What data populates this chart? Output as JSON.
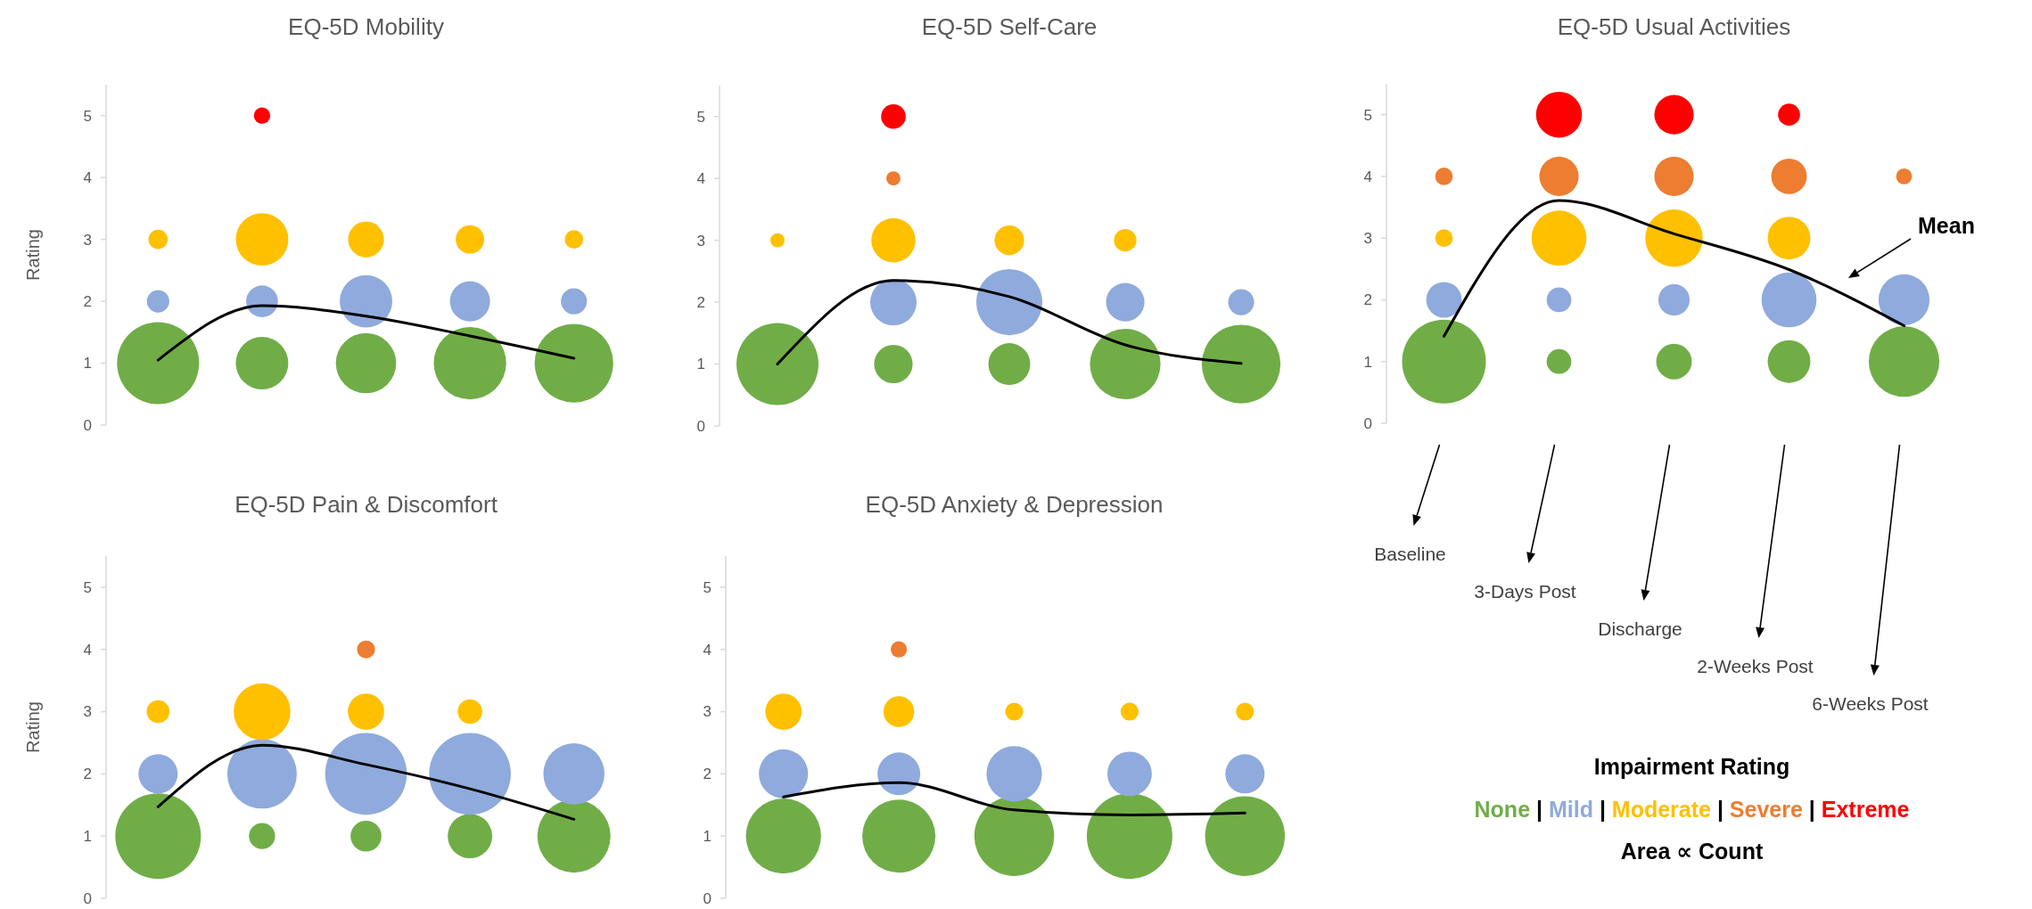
{
  "chart_data": [
    {
      "type": "bubble",
      "title": "EQ-5D Mobility",
      "ylabel": "Rating",
      "categories": [
        null,
        null,
        null,
        null,
        null
      ],
      "ylim": [
        0,
        5.5
      ],
      "yticks": [
        0,
        1,
        2,
        3,
        4,
        5
      ],
      "tick_labels": "y",
      "series": [
        {
          "color": "#70ad47",
          "values": [
            1,
            1,
            1,
            1,
            1
          ],
          "sizes": [
            1,
            0.41,
            0.54,
            0.78,
            0.92
          ]
        },
        {
          "color": "#8faadc",
          "values": [
            2,
            2,
            2,
            2,
            2
          ],
          "sizes": [
            0.075,
            0.15,
            0.41,
            0.24,
            0.1
          ]
        },
        {
          "color": "#ffc000",
          "values": [
            3,
            3,
            3,
            3,
            3
          ],
          "sizes": [
            0.055,
            0.41,
            0.19,
            0.12,
            0.05
          ]
        },
        {
          "color": "#ff0000",
          "values": [
            null,
            5,
            null,
            null,
            null
          ],
          "sizes": [
            null,
            0.04,
            null,
            null,
            null
          ]
        },
        {
          "type": "line",
          "color": "#000000",
          "values": [
            1.05,
            1.93,
            1.76,
            1.44,
            1.08
          ]
        }
      ]
    },
    {
      "type": "bubble",
      "title": "EQ-5D Self-Care",
      "categories": [
        null,
        null,
        null,
        null,
        null
      ],
      "ylim": [
        0,
        5.5
      ],
      "yticks": [
        0,
        1,
        2,
        3,
        4,
        5
      ],
      "tick_labels": "y",
      "series": [
        {
          "color": "#70ad47",
          "values": [
            1,
            1,
            1,
            1,
            1
          ],
          "sizes": [
            1,
            0.22,
            0.26,
            0.74,
            0.92
          ]
        },
        {
          "color": "#8faadc",
          "values": [
            null,
            2,
            2,
            2,
            2
          ],
          "sizes": [
            null,
            0.32,
            0.65,
            0.22,
            0.1
          ]
        },
        {
          "color": "#ffc000",
          "values": [
            3,
            3,
            3,
            3,
            null
          ],
          "sizes": [
            0.03,
            0.29,
            0.13,
            0.075,
            null
          ]
        },
        {
          "color": "#ed7d31",
          "values": [
            null,
            4,
            null,
            null,
            null
          ],
          "sizes": [
            null,
            0.03,
            null,
            null,
            null
          ]
        },
        {
          "color": "#ff0000",
          "values": [
            null,
            5,
            null,
            null,
            null
          ],
          "sizes": [
            null,
            0.09,
            null,
            null,
            null
          ]
        },
        {
          "type": "line",
          "color": "#000000",
          "values": [
            1.0,
            2.35,
            2.09,
            1.31,
            1.01
          ]
        }
      ]
    },
    {
      "type": "bubble",
      "title": "EQ-5D Usual Activities",
      "categories": [
        null,
        null,
        null,
        null,
        null
      ],
      "ylim": [
        0,
        5.5
      ],
      "yticks": [
        0,
        1,
        2,
        3,
        4,
        5
      ],
      "tick_labels": "y",
      "legend": "bottom",
      "legend_title": "Impairment Rating",
      "annotations": [
        "Baseline",
        "3-Days Post",
        "Discharge",
        "2-Weeks Post",
        "6-Weeks Post",
        "|",
        "|",
        "|",
        "|",
        "Area ∝ Count"
      ],
      "series": [
        {
          "name": "None",
          "color": "#70ad47",
          "values": [
            1,
            1,
            1,
            1,
            1
          ],
          "sizes": [
            1,
            0.087,
            0.18,
            0.26,
            0.71
          ]
        },
        {
          "name": "Mild",
          "color": "#8faadc",
          "values": [
            2,
            2,
            2,
            2,
            2
          ],
          "sizes": [
            0.18,
            0.087,
            0.14,
            0.43,
            0.37
          ]
        },
        {
          "name": "Moderate",
          "color": "#ffc000",
          "values": [
            3,
            3,
            3,
            3,
            null
          ],
          "sizes": [
            0.044,
            0.43,
            0.47,
            0.26,
            null
          ]
        },
        {
          "name": "Severe",
          "color": "#ed7d31",
          "values": [
            4,
            4,
            4,
            4,
            4
          ],
          "sizes": [
            0.044,
            0.22,
            0.22,
            0.18,
            0.036
          ]
        },
        {
          "name": "Extreme",
          "color": "#ff0000",
          "values": [
            null,
            5,
            5,
            5,
            null
          ],
          "sizes": [
            null,
            0.3,
            0.22,
            0.069,
            null
          ]
        },
        {
          "type": "line",
          "name": "Mean",
          "color": "#000000",
          "values": [
            1.41,
            3.61,
            3.07,
            2.49,
            1.58
          ]
        }
      ]
    },
    {
      "type": "bubble",
      "title": "EQ-5D Pain & Discomfort",
      "ylabel": "Rating",
      "categories": [
        null,
        null,
        null,
        null,
        null
      ],
      "ylim": [
        0,
        5.5
      ],
      "yticks": [
        0,
        1,
        2,
        3,
        4,
        5
      ],
      "tick_labels": "y",
      "series": [
        {
          "color": "#70ad47",
          "values": [
            1,
            1,
            1,
            1,
            1
          ],
          "sizes": [
            1,
            0.093,
            0.13,
            0.27,
            0.73
          ]
        },
        {
          "color": "#8faadc",
          "values": [
            2,
            2,
            2,
            2,
            2
          ],
          "sizes": [
            0.21,
            0.66,
            0.91,
            0.91,
            0.51
          ]
        },
        {
          "color": "#ffc000",
          "values": [
            3,
            3,
            3,
            3,
            null
          ],
          "sizes": [
            0.071,
            0.44,
            0.18,
            0.082,
            null
          ]
        },
        {
          "color": "#ed7d31",
          "values": [
            null,
            null,
            4,
            null,
            null
          ],
          "sizes": [
            null,
            null,
            0.044,
            null,
            null
          ]
        },
        {
          "type": "line",
          "color": "#000000",
          "values": [
            1.47,
            2.46,
            2.15,
            1.76,
            1.27
          ]
        }
      ]
    },
    {
      "type": "bubble",
      "title": "EQ-5D Anxiety & Depression",
      "categories": [
        null,
        null,
        null,
        null,
        null
      ],
      "ylim": [
        0,
        5.5
      ],
      "yticks": [
        0,
        1,
        2,
        3,
        4,
        5
      ],
      "tick_labels": "y",
      "series": [
        {
          "color": "#70ad47",
          "values": [
            1,
            1,
            1,
            1,
            1
          ],
          "sizes": [
            0.77,
            0.73,
            0.87,
            1,
            0.87
          ]
        },
        {
          "color": "#8faadc",
          "values": [
            2,
            2,
            2,
            2,
            2
          ],
          "sizes": [
            0.33,
            0.25,
            0.42,
            0.27,
            0.21
          ]
        },
        {
          "color": "#ffc000",
          "values": [
            3,
            3,
            3,
            3,
            3
          ],
          "sizes": [
            0.18,
            0.13,
            0.044,
            0.044,
            0.044
          ]
        },
        {
          "color": "#ed7d31",
          "values": [
            null,
            4,
            null,
            null,
            null
          ],
          "sizes": [
            null,
            0.036,
            null,
            null,
            null
          ]
        },
        {
          "type": "line",
          "color": "#000000",
          "values": [
            1.63,
            1.86,
            1.42,
            1.34,
            1.37
          ]
        }
      ]
    }
  ]
}
